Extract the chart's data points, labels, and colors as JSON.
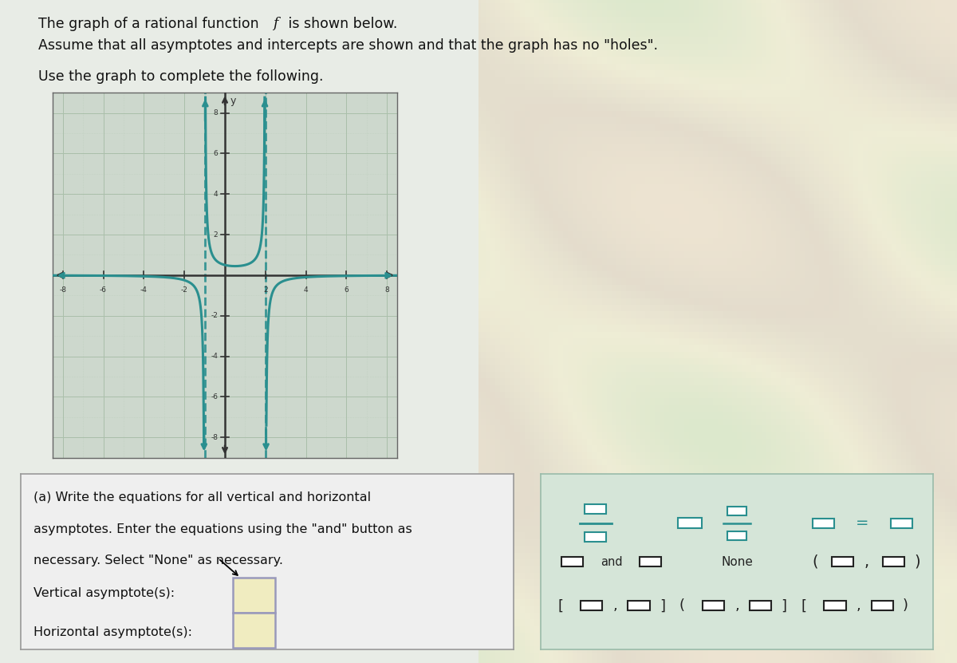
{
  "title_line1": "The graph of a rational function ƒ is shown below.",
  "title_line2": "Assume that all asymptotes and intercepts are shown and that the graph has no \"holes\".",
  "title_line3": "Use the graph to complete the following.",
  "bg_color_left": "#e8ece8",
  "bg_color_right_top": "#d4e8c8",
  "bg_color_right_bottom": "#e8e0d0",
  "graph_bg": "#cdd8cd",
  "grid_color_major": "#aabfaa",
  "grid_color_minor": "#bbccbb",
  "curve_color": "#2a8f8f",
  "axis_color": "#333333",
  "xmin": -8.5,
  "xmax": 8.5,
  "ymin": -9,
  "ymax": 9,
  "xticks": [
    -8,
    -6,
    -4,
    -2,
    2,
    4,
    6,
    8
  ],
  "yticks": [
    -8,
    -6,
    -4,
    -2,
    2,
    4,
    6,
    8
  ],
  "vertical_asymptotes": [
    -1,
    2
  ],
  "part_a_text_1": "(a) Write the equations for all vertical and horizontal",
  "part_a_text_2": "asymptotes. Enter the equations using the \"and\" button as",
  "part_a_text_3": "necessary. Select \"None\" as necessary.",
  "vertical_label": "Vertical asymptote(s):",
  "horizontal_label": "Horizontal asymptote(s):",
  "input_box_color": "#f0ecc0",
  "input_border_color": "#9999bb",
  "panel_bg": "#efefef",
  "panel_border": "#999999",
  "toolbar_bg": "#d5e5d8",
  "toolbar_border": "#99bbaa",
  "toolbar_color": "#2a8f8f",
  "text_color": "#111111",
  "cursor_color": "#333333"
}
